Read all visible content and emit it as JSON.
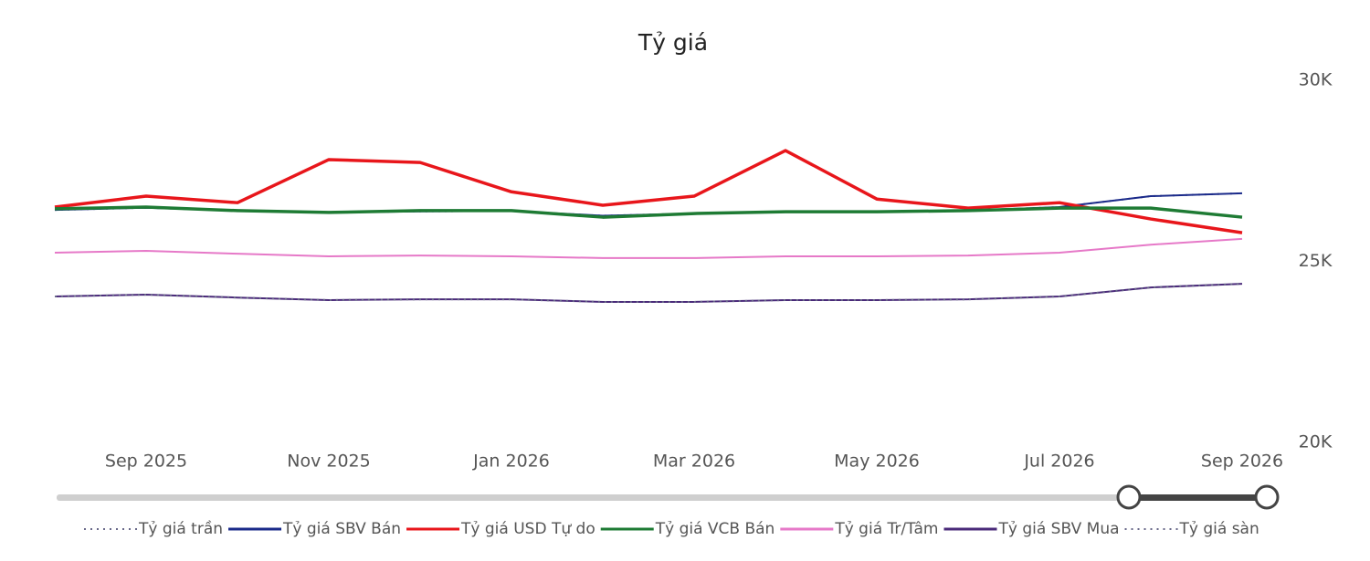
{
  "chart_data": {
    "type": "line",
    "title": "Tỷ giá",
    "x": [
      "2025-08",
      "2025-09",
      "2025-10",
      "2025-11",
      "2025-12",
      "2026-01",
      "2026-02",
      "2026-03",
      "2026-04",
      "2026-05",
      "2026-06",
      "2026-07",
      "2026-08",
      "2026-09"
    ],
    "xticks": [
      {
        "value": "2025-09",
        "label": "Sep 2025"
      },
      {
        "value": "2025-11",
        "label": "Nov 2025"
      },
      {
        "value": "2026-01",
        "label": "Jan 2026"
      },
      {
        "value": "2026-03",
        "label": "Mar 2026"
      },
      {
        "value": "2026-05",
        "label": "May 2026"
      },
      {
        "value": "2026-07",
        "label": "Jul 2026"
      },
      {
        "value": "2026-09",
        "label": "Sep 2026"
      }
    ],
    "ylim": [
      20000,
      30000
    ],
    "yticks": [
      {
        "value": 20000,
        "label": "20K"
      },
      {
        "value": 25000,
        "label": "25K"
      },
      {
        "value": 30000,
        "label": "30K"
      }
    ],
    "series": [
      {
        "name": "Tỷ giá trần",
        "color": "#6a6a8a",
        "dash": true,
        "values": [
          26420,
          26480,
          26400,
          26350,
          26380,
          26390,
          26260,
          26320,
          26360,
          26370,
          26400,
          26500,
          26800,
          26880
        ]
      },
      {
        "name": "Tỷ giá SBV Bán",
        "color": "#1a2a8a",
        "dash": false,
        "values": [
          26420,
          26480,
          26400,
          26350,
          26380,
          26390,
          26260,
          26320,
          26360,
          26370,
          26400,
          26500,
          26800,
          26880
        ]
      },
      {
        "name": "Tỷ giá USD Tự do",
        "color": "#e8161b",
        "dash": false,
        "values": [
          26500,
          26800,
          26620,
          27810,
          27730,
          26920,
          26550,
          26800,
          28060,
          26720,
          26470,
          26620,
          26170,
          25790
        ]
      },
      {
        "name": "Tỷ giá VCB Bán",
        "color": "#1e7b34",
        "dash": false,
        "values": [
          26450,
          26500,
          26400,
          26350,
          26400,
          26400,
          26220,
          26320,
          26370,
          26370,
          26400,
          26470,
          26470,
          26220
        ]
      },
      {
        "name": "Tỷ giá Tr/Tâm",
        "color": "#e679c8",
        "dash": false,
        "values": [
          25240,
          25290,
          25210,
          25140,
          25160,
          25140,
          25090,
          25090,
          25140,
          25140,
          25160,
          25240,
          25460,
          25620
        ]
      },
      {
        "name": "Tỷ giá SBV Mua",
        "color": "#4a2a7a",
        "dash": false,
        "values": [
          24030,
          24080,
          24000,
          23930,
          23950,
          23950,
          23880,
          23880,
          23930,
          23930,
          23950,
          24030,
          24280,
          24380
        ]
      },
      {
        "name": "Tỷ giá sàn",
        "color": "#6a6a8a",
        "dash": true,
        "values": [
          24030,
          24080,
          24000,
          23930,
          23950,
          23950,
          23880,
          23880,
          23930,
          23930,
          23950,
          24030,
          24280,
          24380
        ]
      }
    ]
  }
}
